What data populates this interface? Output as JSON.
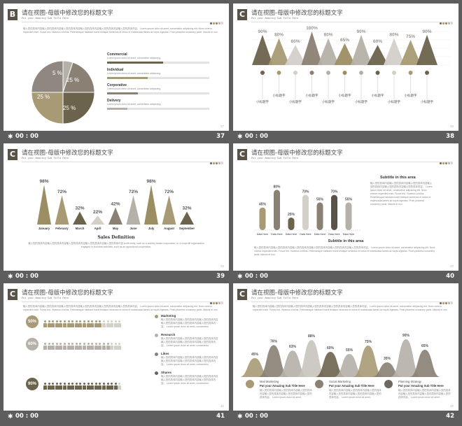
{
  "colors": {
    "olive": "#6b634c",
    "khaki": "#a89a74",
    "taupe": "#8a8073",
    "grey": "#b5b0a8",
    "light": "#d3d0ca",
    "dark": "#5a5348",
    "gold": "#9c8e63"
  },
  "slide_title": "请在视图-母版中修改您的标题文字",
  "slide_subtitle": "Put your Amazing Sub Title Here",
  "caption_time": "00 : 00",
  "body_text": "输入您的具体内容输入您的具体内容输入您的具体内容输入您的具体内容输入您的具体内容输入您的具体内容。 Lorem ipsum dolor sit amet, consectetur adipiscing elit. Nunc viverra imperdiet enim. Fusce est. Vivamus a tellus. Pellentesque habitant morbi tristique senectus et netus et malesuada fames ac turpis egestas. Proin pharetra nonummy pede. Mauris et orci.",
  "slides": [
    {
      "letter": "B",
      "page": "37",
      "pie": {
        "values": [
          5,
          25,
          25,
          25
        ],
        "labels": [
          "5 %",
          "25 %",
          "25 %",
          "25 %"
        ]
      },
      "rows": [
        {
          "label": "Commercial",
          "text": "Lorem ipsum dolor sit amet, consectetur adipiscing",
          "value": 0.55
        },
        {
          "label": "Individual",
          "text": "Lorem ipsum dolor sit amet, consectetur adipiscing",
          "value": 0.4
        },
        {
          "label": "Corporative",
          "text": "Lorem ipsum dolor sit amet, consectetur adipiscing",
          "value": 0.3
        },
        {
          "label": "Delivery",
          "text": "Lorem ipsum dolor sit amet, consectetur adipiscing",
          "value": 0.2
        }
      ]
    },
    {
      "letter": "C",
      "page": "38",
      "chart_data": {
        "type": "bar",
        "values": [
          90,
          80,
          60,
          100,
          80,
          65,
          90,
          60,
          80,
          75,
          90
        ],
        "labels": [
          "90%",
          "80%",
          "60%",
          "100%",
          "80%",
          "65%",
          "90%",
          "60%",
          "80%",
          "75%",
          "90%"
        ],
        "categories": [
          "小标题字",
          "小标题字",
          "小标题字",
          "小标题字",
          "小标题字",
          "小标题字",
          "小标题字",
          "小标题字",
          "小标题字",
          "小标题字",
          "小标题字"
        ]
      }
    },
    {
      "letter": "C",
      "page": "39",
      "chart_data": {
        "type": "bar",
        "values": [
          98,
          72,
          32,
          22,
          42,
          72,
          98,
          72,
          32
        ],
        "labels": [
          "98%",
          "72%",
          "32%",
          "22%",
          "42%",
          "72%",
          "98%",
          "72%",
          "32%"
        ],
        "categories": [
          "January",
          "February",
          "March",
          "April",
          "May",
          "June",
          "July",
          "August",
          "September"
        ]
      },
      "heading": "Sales Definition",
      "desc": "输入您的具体内容输入您的具体内容输入您的具体内容输入您的具体内容输入您的具体内容 profit entity, such as a publicly traded corporation, or a nonprofit organization engaged in business activities, such as an agricultural cooperative."
    },
    {
      "letter": "C",
      "page": "40",
      "chart_data": {
        "type": "bar",
        "values": [
          45,
          80,
          25,
          70,
          55,
          70,
          55
        ],
        "labels": [
          "45%",
          "80%",
          "25%",
          "70%",
          "55%",
          "70%",
          "55%"
        ],
        "categories": [
          "Data Here",
          "Data Here",
          "Data Here",
          "Data Here",
          "Data Here",
          "Data Here",
          "Data Here"
        ]
      },
      "sub1": "Subtitle  in this  area",
      "sub2": "Subtitle  in this  area"
    },
    {
      "letter": "C",
      "page": "41",
      "groups": [
        {
          "pct": "50%",
          "title": "Marketing",
          "value": 0.5
        },
        {
          "pct": "60%",
          "title": "Research",
          "value": 0.6
        },
        {
          "pct": "90%",
          "title": "Likes",
          "value": 0.9
        },
        {
          "pct": "",
          "title": "Shares",
          "value": 0
        }
      ]
    },
    {
      "letter": "C",
      "page": "42",
      "chart_data": {
        "type": "area",
        "values": [
          45,
          76,
          63,
          88,
          60,
          55,
          75,
          35,
          90,
          65
        ],
        "labels": [
          "45%",
          "76%",
          "63%",
          "88%",
          "60%",
          "55%",
          "75%",
          "35%",
          "90%",
          "65%"
        ]
      },
      "legend": [
        {
          "title": "Mail Marketing",
          "sub": "Put your Amazing Sub Title Here"
        },
        {
          "title": "Social Marketing",
          "sub": "Put your Amazing Sub Title Here"
        },
        {
          "title": "Planning Strategy",
          "sub": "Put your Amazing Sub Title Here"
        }
      ]
    }
  ]
}
